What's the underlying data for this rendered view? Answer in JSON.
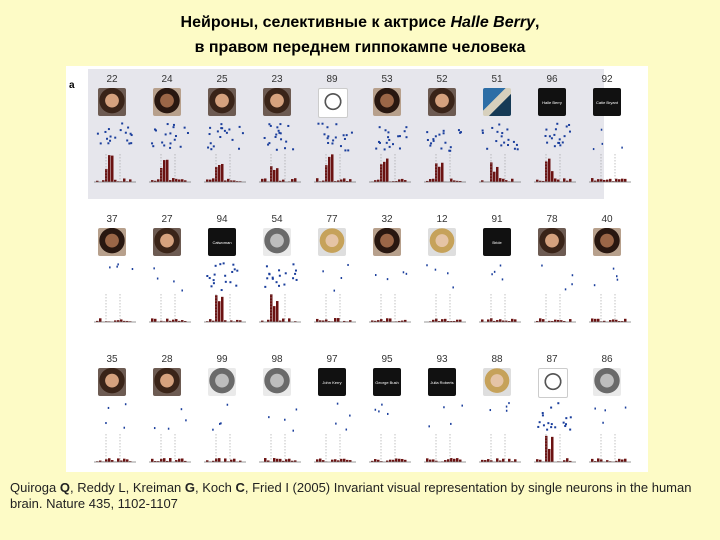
{
  "title": {
    "line1_prefix": "Нейроны, селективные к актрисе ",
    "line1_italic": "Halle Berry",
    "line1_suffix": ",",
    "line2": "в правом переднем гиппокампе человека"
  },
  "figure": {
    "panel_letter": "a",
    "rows": [
      {
        "highlighted": true,
        "cells": [
          {
            "n": "22",
            "kind": "skin"
          },
          {
            "n": "24",
            "kind": "skin2"
          },
          {
            "n": "25",
            "kind": "skin"
          },
          {
            "n": "23",
            "kind": "skin"
          },
          {
            "n": "89",
            "kind": "sketch"
          },
          {
            "n": "53",
            "kind": "skin2"
          },
          {
            "n": "52",
            "kind": "skin"
          },
          {
            "n": "51",
            "kind": "scene"
          },
          {
            "n": "96",
            "kind": "text",
            "label": "Halle Berry"
          },
          {
            "n": "92",
            "kind": "text",
            "label": "Catie Bryant"
          }
        ]
      },
      {
        "highlighted": false,
        "cells": [
          {
            "n": "37",
            "kind": "skin2"
          },
          {
            "n": "27",
            "kind": "skin"
          },
          {
            "n": "94",
            "kind": "text",
            "label": "Catwoman"
          },
          {
            "n": "54",
            "kind": "grey"
          },
          {
            "n": "77",
            "kind": "light"
          },
          {
            "n": "32",
            "kind": "skin2"
          },
          {
            "n": "12",
            "kind": "light"
          },
          {
            "n": "91",
            "kind": "text",
            "label": "Bride"
          },
          {
            "n": "78",
            "kind": "skin"
          },
          {
            "n": "40",
            "kind": "skin2"
          }
        ]
      },
      {
        "highlighted": false,
        "cells": [
          {
            "n": "35",
            "kind": "skin"
          },
          {
            "n": "28",
            "kind": "skin"
          },
          {
            "n": "99",
            "kind": "grey"
          },
          {
            "n": "98",
            "kind": "grey"
          },
          {
            "n": "97",
            "kind": "text",
            "label": "John Kerry"
          },
          {
            "n": "95",
            "kind": "text",
            "label": "George Bush"
          },
          {
            "n": "93",
            "kind": "text",
            "label": "Julia Roberts"
          },
          {
            "n": "88",
            "kind": "light"
          },
          {
            "n": "87",
            "kind": "sketch"
          },
          {
            "n": "86",
            "kind": "grey"
          }
        ]
      }
    ]
  },
  "caption": {
    "text_a": "Quiroga ",
    "bold_q": "Q",
    "text_b": ", Reddy L, Kreiman ",
    "bold_g": "G",
    "text_c": ", Koch ",
    "bold_c": "C",
    "text_d": ", Fried I (2005) Invariant visual representation by single neurons in the human brain. Nature 435, 1102-1107"
  },
  "colors": {
    "background": "#fdfbc6",
    "spike": "#1a3e9c",
    "psth": "#6b1212"
  }
}
